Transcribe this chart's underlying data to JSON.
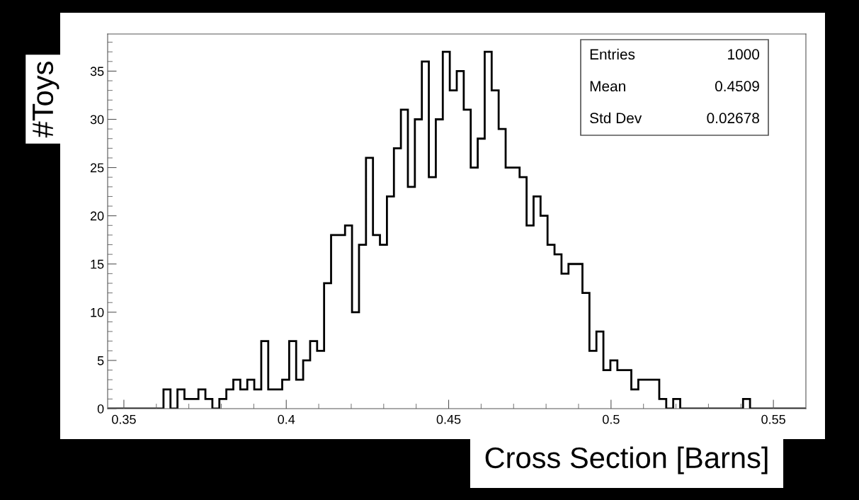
{
  "chart_data": {
    "type": "histogram",
    "xlabel": "Cross Section [Barns]",
    "ylabel": "#Toys",
    "bins": [
      0.345,
      0.34715,
      0.3493,
      0.35145,
      0.3536,
      0.35575,
      0.3579,
      0.36005,
      0.3622,
      0.36435,
      0.3665,
      0.36865,
      0.3708,
      0.37295,
      0.3751,
      0.37725,
      0.3794,
      0.38155,
      0.3837,
      0.38585,
      0.388,
      0.39015,
      0.3923,
      0.39445,
      0.3966,
      0.39875,
      0.4009,
      0.40305,
      0.4052,
      0.40735,
      0.4095,
      0.41165,
      0.4138,
      0.41595,
      0.4181,
      0.42025,
      0.4224,
      0.42455,
      0.4267,
      0.42885,
      0.431,
      0.43315,
      0.4353,
      0.43745,
      0.4396,
      0.44175,
      0.4439,
      0.44605,
      0.4482,
      0.45035,
      0.4525,
      0.45465,
      0.4568,
      0.45895,
      0.4611,
      0.46325,
      0.4654,
      0.46755,
      0.4697,
      0.47185,
      0.474,
      0.47615,
      0.4783,
      0.48045,
      0.4826,
      0.48475,
      0.4869,
      0.48905,
      0.4912,
      0.49335,
      0.4955,
      0.49765,
      0.4998,
      0.50195,
      0.5041,
      0.50625,
      0.5084,
      0.51055,
      0.5127,
      0.51485,
      0.517,
      0.51915,
      0.5213,
      0.52345,
      0.5256,
      0.52775,
      0.5299,
      0.53205,
      0.5342,
      0.53635,
      0.5385,
      0.54065,
      0.5428,
      0.54495,
      0.5471,
      0.54925,
      0.5514,
      0.55355,
      0.5557,
      0.55785,
      0.56
    ],
    "values": [
      0,
      0,
      0,
      0,
      0,
      0,
      0,
      0,
      2,
      0,
      2,
      1,
      1,
      2,
      1,
      0,
      1,
      2,
      3,
      2,
      3,
      2,
      7,
      2,
      2,
      3,
      7,
      3,
      5,
      7,
      6,
      13,
      18,
      18,
      19,
      10,
      17,
      26,
      18,
      17,
      22,
      27,
      31,
      23,
      30,
      36,
      24,
      30,
      37,
      33,
      35,
      31,
      25,
      28,
      37,
      33,
      29,
      25,
      25,
      24,
      19,
      22,
      20,
      17,
      16,
      14,
      15,
      15,
      12,
      6,
      8,
      4,
      5,
      4,
      4,
      2,
      3,
      3,
      3,
      1,
      0,
      1,
      0,
      0,
      0,
      0,
      0,
      0,
      0,
      0,
      0,
      1,
      0,
      0,
      0,
      0,
      0,
      0,
      0,
      0
    ],
    "color": "#000000",
    "xlim": [
      0.345,
      0.56
    ],
    "ylim": [
      0,
      38.85
    ],
    "xticks": [
      0.35,
      {
        "value": 0.36,
        "label": null
      },
      {
        "value": 0.37,
        "label": null
      },
      {
        "value": 0.38,
        "label": null
      },
      {
        "value": 0.39,
        "label": null
      },
      0.4,
      {
        "value": 0.41,
        "label": null
      },
      {
        "value": 0.42,
        "label": null
      },
      {
        "value": 0.43,
        "label": null
      },
      {
        "value": 0.44,
        "label": null
      },
      0.45,
      {
        "value": 0.46,
        "label": null
      },
      {
        "value": 0.47,
        "label": null
      },
      {
        "value": 0.48,
        "label": null
      },
      {
        "value": 0.49,
        "label": null
      },
      0.5,
      {
        "value": 0.51,
        "label": null
      },
      {
        "value": 0.52,
        "label": null
      },
      {
        "value": 0.53,
        "label": null
      },
      {
        "value": 0.54,
        "label": null
      },
      0.55
    ],
    "yticks": [
      0,
      {
        "value": 1,
        "label": null
      },
      {
        "value": 2,
        "label": null
      },
      {
        "value": 3,
        "label": null
      },
      {
        "value": 4,
        "label": null
      },
      5,
      {
        "value": 6,
        "label": null
      },
      {
        "value": 7,
        "label": null
      },
      {
        "value": 8,
        "label": null
      },
      {
        "value": 9,
        "label": null
      },
      10,
      {
        "value": 11,
        "label": null
      },
      {
        "value": 12,
        "label": null
      },
      {
        "value": 13,
        "label": null
      },
      {
        "value": 14,
        "label": null
      },
      15,
      {
        "value": 16,
        "label": null
      },
      {
        "value": 17,
        "label": null
      },
      {
        "value": 18,
        "label": null
      },
      {
        "value": 19,
        "label": null
      },
      20,
      {
        "value": 21,
        "label": null
      },
      {
        "value": 22,
        "label": null
      },
      {
        "value": 23,
        "label": null
      },
      {
        "value": 24,
        "label": null
      },
      25,
      {
        "value": 26,
        "label": null
      },
      {
        "value": 27,
        "label": null
      },
      {
        "value": 28,
        "label": null
      },
      {
        "value": 29,
        "label": null
      },
      30,
      {
        "value": 31,
        "label": null
      },
      {
        "value": 32,
        "label": null
      },
      {
        "value": 33,
        "label": null
      },
      {
        "value": 34,
        "label": null
      },
      35,
      {
        "value": 36,
        "label": null
      },
      {
        "value": 37,
        "label": null
      },
      {
        "value": 38,
        "label": null
      }
    ],
    "annotations": [
      "Entries",
      "1000",
      "Mean",
      "0.4509",
      "Std Dev",
      "0.02678"
    ],
    "grid": false
  }
}
